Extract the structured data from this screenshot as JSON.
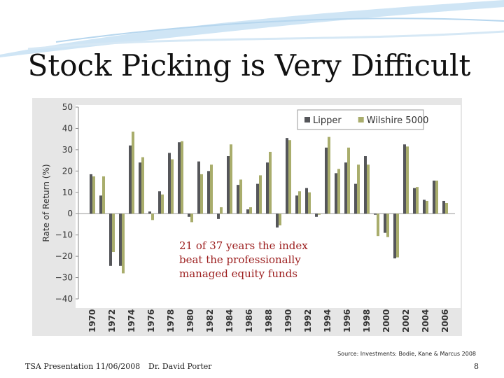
{
  "title": "Stock Picking is Very Difficult",
  "source": "Source: Investments: Bodie, Kane & Marcus 2008",
  "footer": {
    "left": "TSA Presentation 11/06/2008",
    "center": "Dr. David Porter",
    "page": "8"
  },
  "chart_data": {
    "type": "bar",
    "y_label": "Rate of Return (%)",
    "annotation": [
      "21 of 37 years the index",
      "beat the professionally",
      "managed equity funds"
    ],
    "categories": [
      "1970",
      null,
      "1972",
      null,
      "1974",
      null,
      "1976",
      null,
      "1978",
      null,
      "1980",
      null,
      "1982",
      null,
      "1984",
      null,
      "1986",
      null,
      "1988",
      null,
      "1990",
      null,
      "1992",
      null,
      "1994",
      null,
      "1996",
      null,
      "1998",
      null,
      "2000",
      null,
      "2002",
      null,
      "2004",
      null,
      "2006"
    ],
    "series": [
      {
        "name": "Lipper",
        "color": "#55565a",
        "values": [
          18.5,
          8.5,
          -24.5,
          -24.5,
          32,
          24,
          1,
          10.5,
          28.5,
          33.5,
          -1.5,
          24.5,
          20,
          -2.5,
          27,
          13.5,
          2,
          14,
          24,
          -6.5,
          35.5,
          8.5,
          12,
          -1.5,
          31,
          19,
          24,
          14,
          27,
          -0.5,
          -9,
          -21,
          32.5,
          12,
          6.5,
          15.5,
          6
        ]
      },
      {
        "name": "Wilshire 5000",
        "color": "#a9ad6c",
        "values": [
          17.5,
          17.5,
          -18,
          -28,
          38.5,
          26.5,
          -3,
          9,
          25.5,
          34,
          -4,
          18.5,
          23,
          3,
          32.5,
          16,
          3,
          18,
          29,
          -5.5,
          34.5,
          10.5,
          10,
          -0.5,
          36,
          21,
          31,
          23,
          23,
          -10.5,
          -11,
          -20.5,
          31.5,
          12.5,
          6,
          15.5,
          5
        ]
      }
    ],
    "ylim": [
      -40,
      50
    ],
    "yticks": [
      50,
      40,
      30,
      20,
      10,
      0,
      {
        "value": -10,
        "label": "−10"
      },
      {
        "value": -20,
        "label": "−20"
      },
      {
        "value": -30,
        "label": "−30"
      },
      {
        "value": -40,
        "label": "−40"
      }
    ],
    "grid": false,
    "legend": "top-right"
  }
}
